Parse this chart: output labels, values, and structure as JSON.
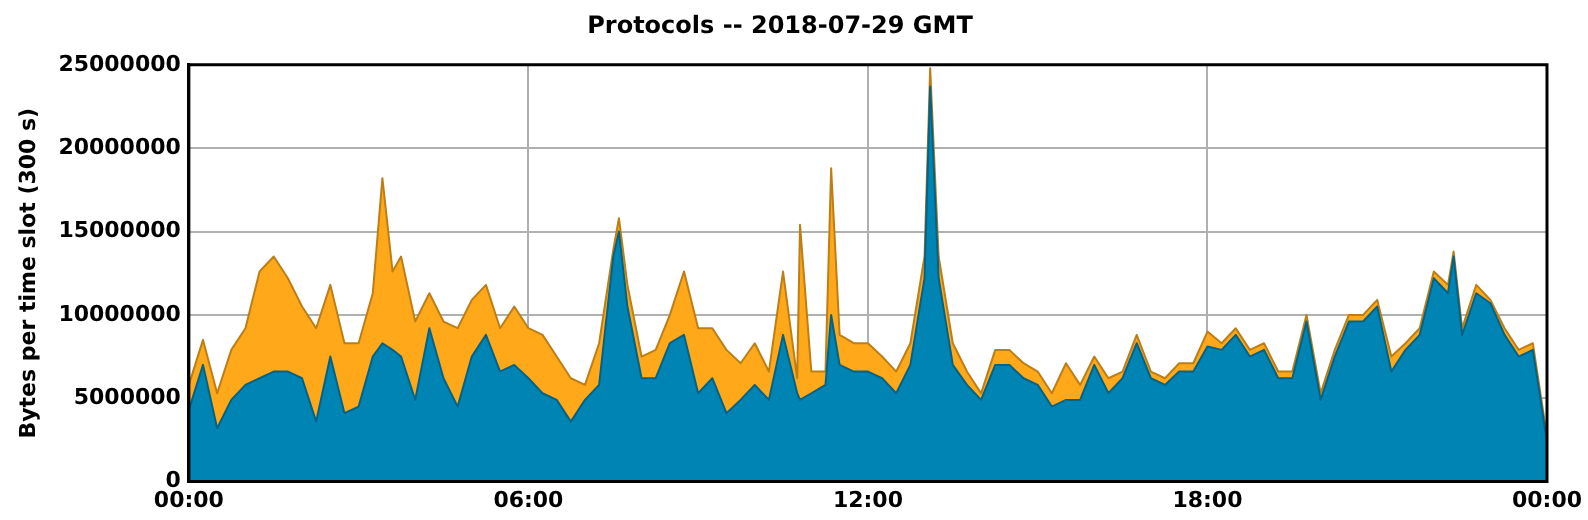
{
  "chart_data": {
    "type": "area",
    "title": "Protocols -- 2018-07-29 GMT",
    "ylabel": "Bytes per time slot (300 s)",
    "stacked": true,
    "grid": true,
    "legend": false,
    "x": [
      0,
      0.25,
      0.5,
      0.75,
      1,
      1.25,
      1.5,
      1.75,
      2,
      2.25,
      2.5,
      2.75,
      3,
      3.25,
      3.42,
      3.6,
      3.75,
      4,
      4.25,
      4.5,
      4.75,
      5,
      5.25,
      5.5,
      5.75,
      6,
      6.25,
      6.5,
      6.75,
      7,
      7.25,
      7.5,
      7.6,
      7.75,
      8,
      8.25,
      8.5,
      8.75,
      9,
      9.25,
      9.5,
      9.75,
      10,
      10.25,
      10.5,
      10.75,
      10.8,
      11,
      11.25,
      11.35,
      11.5,
      11.75,
      12,
      12.25,
      12.5,
      12.75,
      13,
      13.1,
      13.25,
      13.5,
      13.75,
      14,
      14.25,
      14.5,
      14.75,
      15,
      15.25,
      15.5,
      15.75,
      16,
      16.25,
      16.5,
      16.75,
      17,
      17.25,
      17.5,
      17.75,
      18,
      18.25,
      18.5,
      18.75,
      19,
      19.25,
      19.5,
      19.75,
      20,
      20.25,
      20.5,
      20.75,
      21,
      21.25,
      21.5,
      21.75,
      22,
      22.25,
      22.35,
      22.5,
      22.75,
      23,
      23.25,
      23.5,
      23.75,
      24
    ],
    "xlim": [
      0,
      24
    ],
    "xticks": [
      {
        "value": 0,
        "label": "00:00"
      },
      {
        "value": 6,
        "label": "06:00"
      },
      {
        "value": 12,
        "label": "12:00"
      },
      {
        "value": 18,
        "label": "18:00"
      },
      {
        "value": 24,
        "label": "00:00"
      }
    ],
    "ylim": [
      0,
      25000000
    ],
    "yticks": [
      0,
      5000000,
      10000000,
      15000000,
      20000000,
      25000000
    ],
    "series": [
      {
        "color": "#0084b4",
        "values": [
          4300000,
          7000000,
          3200000,
          4900000,
          5800000,
          6200000,
          6600000,
          6600000,
          6200000,
          3600000,
          7500000,
          4100000,
          4500000,
          7500000,
          8300000,
          7900000,
          7500000,
          4900000,
          9200000,
          6200000,
          4500000,
          7500000,
          8800000,
          6600000,
          7000000,
          6200000,
          5300000,
          4900000,
          3600000,
          4900000,
          5800000,
          13500000,
          15000000,
          10500000,
          6200000,
          6200000,
          8300000,
          8800000,
          5300000,
          6200000,
          4100000,
          4900000,
          5800000,
          4900000,
          8800000,
          5300000,
          4900000,
          5300000,
          5800000,
          10000000,
          7000000,
          6600000,
          6600000,
          6200000,
          5300000,
          7000000,
          12200000,
          23700000,
          12200000,
          7000000,
          5800000,
          4900000,
          7000000,
          7000000,
          6200000,
          5800000,
          4500000,
          4900000,
          4900000,
          7000000,
          5300000,
          6200000,
          8300000,
          6200000,
          5800000,
          6600000,
          6600000,
          8100000,
          7900000,
          8800000,
          7500000,
          7900000,
          6200000,
          6200000,
          9600000,
          4900000,
          7500000,
          9600000,
          9600000,
          10500000,
          6600000,
          7900000,
          8800000,
          12200000,
          11300000,
          13500000,
          8800000,
          11300000,
          10700000,
          8800000,
          7500000,
          7900000,
          2400000
        ]
      },
      {
        "color": "#ffa81a",
        "values": [
          1500000,
          1500000,
          2100000,
          3000000,
          3400000,
          6400000,
          6900000,
          5600000,
          4300000,
          5600000,
          4300000,
          4200000,
          3800000,
          3800000,
          9900000,
          4700000,
          6000000,
          4700000,
          2100000,
          3400000,
          4700000,
          3400000,
          3000000,
          2600000,
          3500000,
          3000000,
          3500000,
          2600000,
          2600000,
          900000,
          2500000,
          400000,
          800000,
          1300000,
          1300000,
          1700000,
          1700000,
          3800000,
          3900000,
          3000000,
          3800000,
          2200000,
          2500000,
          1700000,
          3800000,
          900000,
          10500000,
          1300000,
          800000,
          8800000,
          1800000,
          1700000,
          1700000,
          1300000,
          1300000,
          1300000,
          1300000,
          1100000,
          1300000,
          1300000,
          800000,
          400000,
          900000,
          900000,
          900000,
          800000,
          800000,
          2200000,
          900000,
          500000,
          900000,
          400000,
          500000,
          400000,
          400000,
          500000,
          500000,
          900000,
          400000,
          400000,
          400000,
          400000,
          400000,
          400000,
          400000,
          400000,
          400000,
          400000,
          400000,
          400000,
          900000,
          400000,
          400000,
          400000,
          500000,
          300000,
          400000,
          500000,
          200000,
          400000,
          400000,
          400000,
          300000
        ]
      }
    ]
  }
}
